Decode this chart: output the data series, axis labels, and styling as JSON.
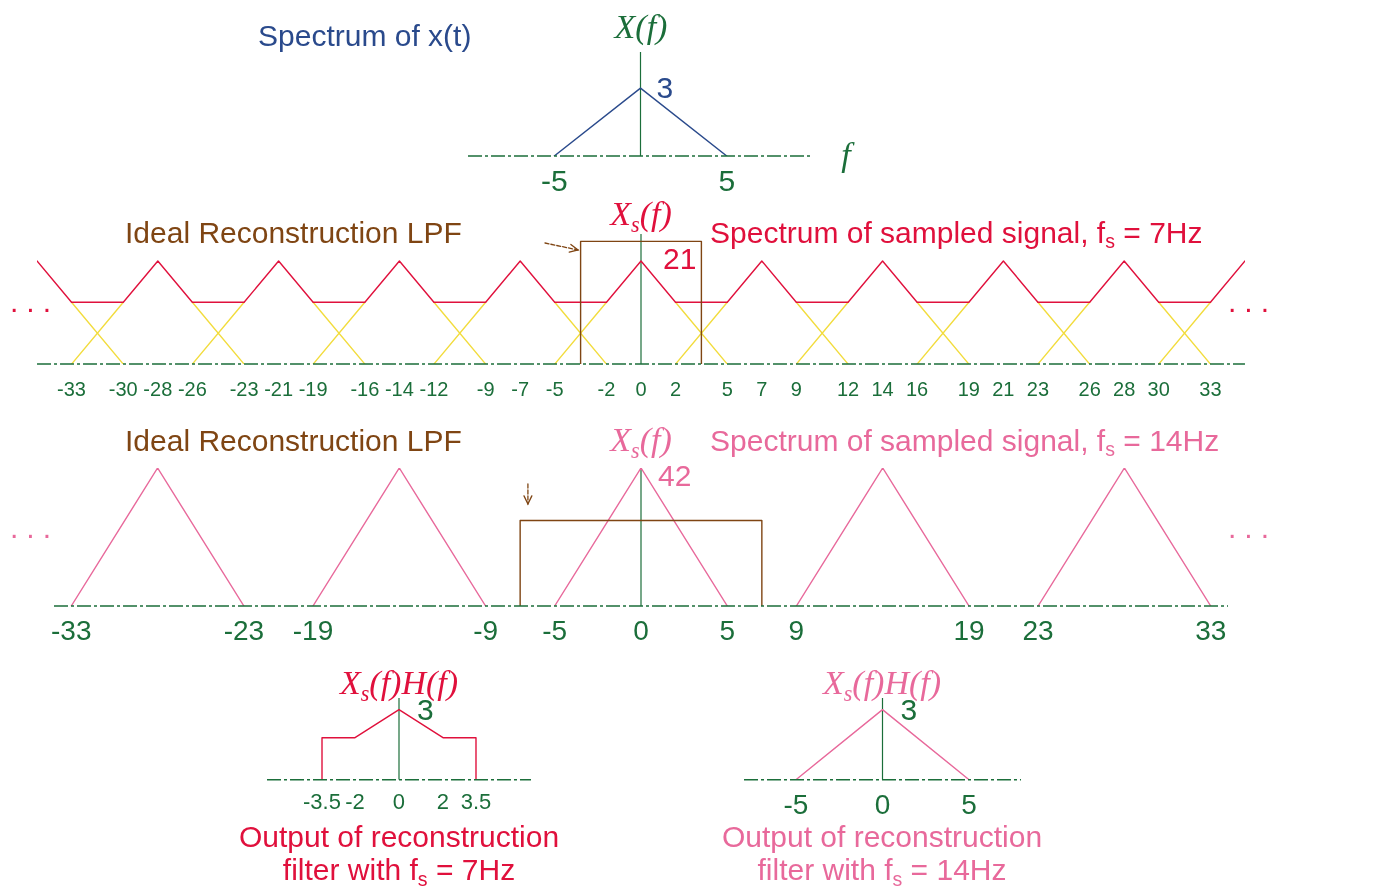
{
  "chart_data": [
    {
      "type": "line",
      "title": "Spectrum of x(t)",
      "xlabel": "f",
      "ylabel": "X(f)",
      "x": [
        -5,
        0,
        5
      ],
      "series": [
        {
          "color": "#2a4a8c",
          "values": [
            0,
            3,
            0
          ],
          "value_labels": [
            null,
            "3",
            null
          ]
        }
      ],
      "xlim": [
        -10,
        10
      ],
      "xticks": [
        -5,
        5
      ],
      "ylim": [
        0,
        4.6
      ],
      "tick_labels": "x",
      "ref_lines": [
        {
          "axis": "x",
          "value": 0,
          "color": "#1b6e3a"
        }
      ]
    },
    {
      "type": "line",
      "title": "Spectrum of sampled signal, f$_{s}$ = 7Hz",
      "ylabel": "X$_{s}$(f)",
      "annotations": [
        "...",
        "..."
      ],
      "series": [
        {
          "color": "#f2dc3c",
          "x": [
            -33,
            -30,
            -29,
            -26,
            -23,
            -22,
            -19,
            -16,
            -15,
            -12,
            -9,
            -8,
            -5,
            -2,
            -1,
            2,
            5,
            6,
            9,
            12,
            13,
            16,
            19,
            20,
            23,
            26,
            27,
            30,
            33
          ],
          "values": [
            12.6,
            0,
            null,
            12.6,
            0,
            null,
            12.6,
            0,
            null,
            12.6,
            0,
            null,
            12.6,
            0,
            null,
            12.6,
            0,
            null,
            12.6,
            0,
            null,
            12.6,
            0,
            null,
            12.6,
            0,
            null,
            12.6,
            0
          ]
        },
        {
          "color": "#f2dc3c",
          "x": [
            -33,
            -30,
            -29,
            -26,
            -23,
            -22,
            -19,
            -16,
            -15,
            -12,
            -9,
            -8,
            -5,
            -2,
            -1,
            2,
            5,
            6,
            9,
            12,
            13,
            16,
            19,
            20,
            23,
            26,
            27,
            30,
            33
          ],
          "values": [
            0,
            12.6,
            null,
            0,
            12.6,
            null,
            0,
            12.6,
            null,
            0,
            12.6,
            null,
            0,
            12.6,
            null,
            0,
            12.6,
            null,
            0,
            12.6,
            null,
            0,
            12.6,
            null,
            0,
            12.6,
            null,
            0,
            12.6
          ]
        },
        {
          "color": "#e0103c",
          "x": [
            -35,
            -33,
            -30,
            -28,
            -26,
            -23,
            -21,
            -19,
            -16,
            -14,
            -12,
            -9,
            -7,
            -5,
            -2,
            0,
            2,
            5,
            7,
            9,
            12,
            14,
            16,
            19,
            21,
            23,
            26,
            28,
            30,
            33,
            35
          ],
          "values": [
            21,
            12.6,
            12.6,
            21,
            12.6,
            12.6,
            21,
            12.6,
            12.6,
            21,
            12.6,
            12.6,
            21,
            12.6,
            12.6,
            21,
            12.6,
            12.6,
            21,
            12.6,
            12.6,
            21,
            12.6,
            12.6,
            21,
            12.6,
            12.6,
            21,
            12.6,
            12.6,
            21
          ],
          "value_labels": [
            null,
            null,
            null,
            null,
            null,
            null,
            null,
            null,
            null,
            null,
            null,
            null,
            null,
            null,
            null,
            "21",
            null,
            null,
            null,
            null,
            null,
            null,
            null,
            null,
            null,
            null,
            null,
            null,
            null,
            null,
            null
          ]
        },
        {
          "name": "Ideal Reconstruction LPF",
          "color": "#7f4513",
          "x": [
            -3.5,
            -3.5,
            3.5,
            3.5
          ],
          "values": [
            0,
            25,
            25,
            0
          ]
        }
      ],
      "xlim": [
        -35,
        35
      ],
      "xticks": [
        -33,
        -30,
        -28,
        -26,
        -23,
        -21,
        -19,
        -16,
        -14,
        -12,
        -9,
        -7,
        -5,
        -2,
        0,
        2,
        5,
        7,
        9,
        12,
        14,
        16,
        19,
        21,
        23,
        26,
        28,
        30,
        33
      ],
      "ylim": [
        0,
        26.5
      ],
      "tick_labels": "x",
      "ref_lines": [
        {
          "axis": "x",
          "value": 0,
          "color": "#1b6e3a"
        }
      ]
    },
    {
      "type": "line",
      "title": "Spectrum of sampled signal, f$_{s}$ = 14Hz",
      "ylabel": "X$_{s}$(f)",
      "annotations": [
        "...",
        "..."
      ],
      "series": [
        {
          "color": "#e8699b",
          "x": [
            -33,
            -28,
            -23,
            -21,
            -19,
            -14,
            -9,
            -7,
            -5,
            0,
            5,
            7,
            9,
            14,
            19,
            21,
            23,
            28,
            33
          ],
          "values": [
            0,
            42,
            0,
            null,
            0,
            42,
            0,
            null,
            0,
            42,
            0,
            null,
            0,
            42,
            0,
            null,
            0,
            42,
            0
          ],
          "value_labels": [
            null,
            null,
            null,
            null,
            null,
            null,
            null,
            null,
            null,
            "42",
            null,
            null,
            null,
            null,
            null,
            null,
            null,
            null,
            null
          ]
        },
        {
          "name": "Ideal Reconstruction LPF",
          "color": "#7f4513",
          "x": [
            -7,
            -7,
            7,
            7
          ],
          "values": [
            0,
            26,
            26,
            0
          ]
        }
      ],
      "xlim": [
        -34,
        34
      ],
      "xticks": [
        -33,
        -23,
        -19,
        -9,
        -5,
        0,
        5,
        9,
        19,
        23,
        33
      ],
      "ylim": [
        0,
        42
      ],
      "tick_labels": "x",
      "ref_lines": [
        {
          "axis": "x",
          "value": 0,
          "color": "#1b6e3a"
        }
      ]
    },
    {
      "type": "line",
      "title": "Output of reconstruction filter with f$_{s}$ = 7Hz",
      "ylabel": "X$_{s}$(f)H(f)",
      "series": [
        {
          "color": "#e0103c",
          "x": [
            -3.5,
            -3.5,
            -2,
            0,
            2,
            3.5,
            3.5
          ],
          "values": [
            0,
            1.8,
            1.8,
            3,
            1.8,
            1.8,
            0
          ],
          "value_labels": [
            null,
            null,
            null,
            "3",
            null,
            null,
            null
          ]
        }
      ],
      "xlim": [
        -6,
        6
      ],
      "xticks": [
        -3.5,
        -2,
        0,
        2,
        3.5
      ],
      "ylim": [
        0,
        3.5
      ],
      "tick_labels": "x",
      "ref_lines": [
        {
          "axis": "x",
          "value": 0,
          "color": "#1b6e3a"
        }
      ]
    },
    {
      "type": "line",
      "title": "Output of reconstruction filter with f$_{s}$ = 14Hz",
      "ylabel": "X$_{s}$(f)H(f)",
      "series": [
        {
          "color": "#e8699b",
          "x": [
            -5,
            0,
            5
          ],
          "values": [
            0,
            3,
            0
          ],
          "value_labels": [
            null,
            "3",
            null
          ]
        }
      ],
      "xlim": [
        -8,
        8
      ],
      "xticks": [
        -5,
        0,
        5
      ],
      "ylim": [
        0,
        3.5
      ],
      "tick_labels": "x",
      "ref_lines": [
        {
          "axis": "x",
          "value": 0,
          "color": "#1b6e3a"
        }
      ]
    }
  ]
}
